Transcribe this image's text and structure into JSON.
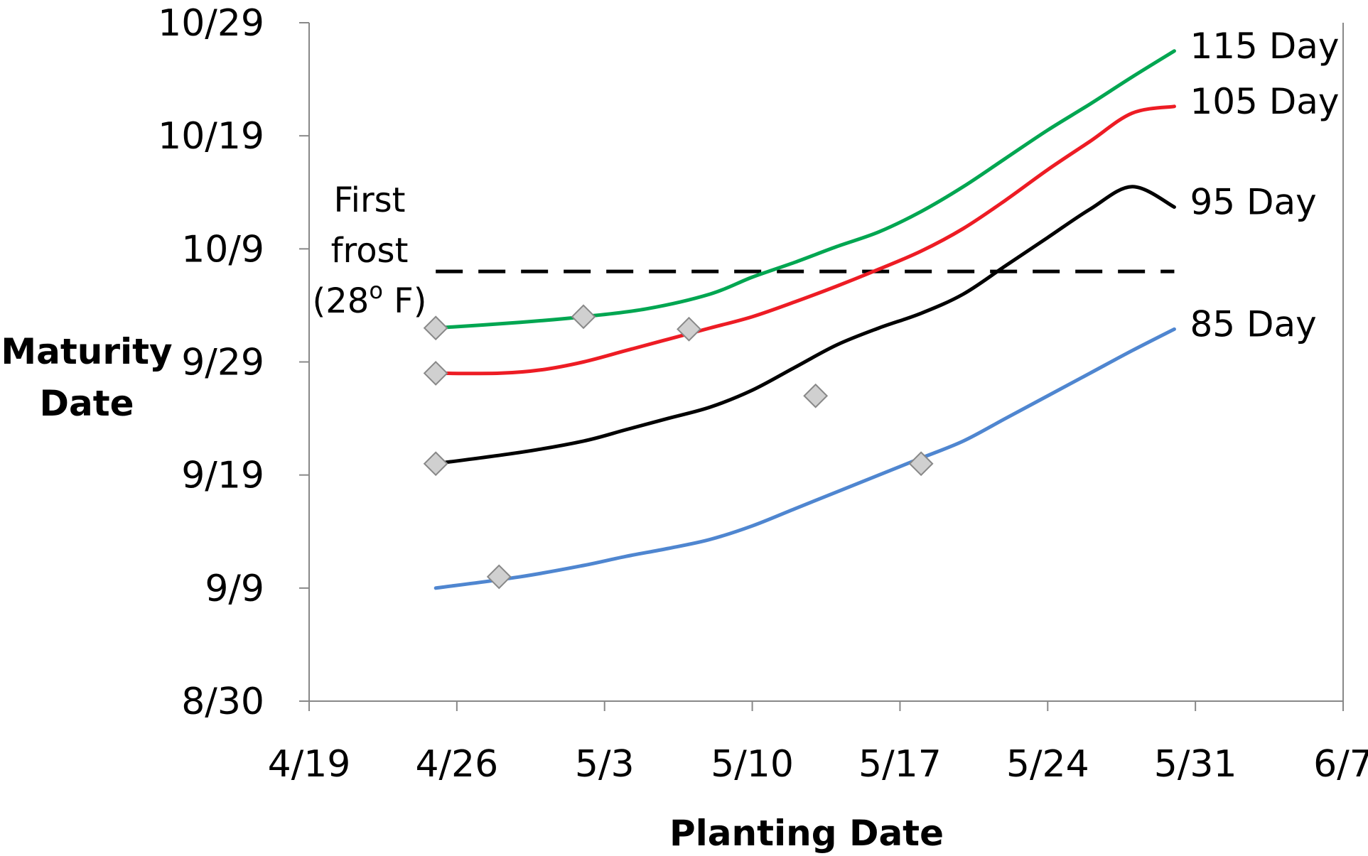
{
  "chart_data": {
    "type": "line",
    "xlabel": "Planting Date",
    "ylabel_lines": [
      "Maturity",
      "Date"
    ],
    "x_ticks": [
      "4/19",
      "4/26",
      "5/3",
      "5/10",
      "5/17",
      "5/24",
      "5/31",
      "6/7"
    ],
    "y_ticks": [
      "8/30",
      "9/9",
      "9/19",
      "9/29",
      "10/9",
      "10/19",
      "10/29"
    ],
    "xlim": [
      "4/19",
      "6/7"
    ],
    "ylim": [
      "8/30",
      "10/29"
    ],
    "grid": false,
    "series": [
      {
        "name": "115 Day",
        "color": "#00A651",
        "x": [
          "4/25",
          "4/29",
          "5/2",
          "5/5",
          "5/8",
          "5/10",
          "5/12",
          "5/14",
          "5/16",
          "5/18",
          "5/20",
          "5/22",
          "5/24",
          "5/26",
          "5/28",
          "5/30"
        ],
        "y": [
          "10/2",
          "10/2.5",
          "10/3",
          "10/3.7",
          "10/5",
          "10/6.5",
          "10/7.8",
          "10/9.2",
          "10/10.5",
          "10/12.3",
          "10/14.5",
          "10/17",
          "10/19.5",
          "10/21.8",
          "10/24.2",
          "10/26.5"
        ],
        "markers": [
          {
            "x": "4/25",
            "y": "10/2"
          },
          {
            "x": "5/2",
            "y": "10/3"
          }
        ]
      },
      {
        "name": "105 Day",
        "color": "#ED1C24",
        "x": [
          "4/25",
          "4/28",
          "4/30",
          "5/2",
          "5/4",
          "5/6",
          "5/8",
          "5/10",
          "5/12",
          "5/14",
          "5/16",
          "5/18",
          "5/20",
          "5/22",
          "5/24",
          "5/26",
          "5/28",
          "5/30"
        ],
        "y": [
          "9/28",
          "9/28",
          "9/28.3",
          "9/29",
          "9/30",
          "10/1",
          "10/2",
          "10/3",
          "10/4.3",
          "10/5.7",
          "10/7.2",
          "10/8.8",
          "10/10.8",
          "10/13.3",
          "10/16",
          "10/18.5",
          "10/21",
          "10/21.6"
        ],
        "markers": [
          {
            "x": "4/25",
            "y": "9/28"
          },
          {
            "x": "5/7",
            "y": "10/1.9"
          }
        ]
      },
      {
        "name": "95 Day",
        "color": "#000000",
        "x": [
          "4/25",
          "4/29",
          "5/2",
          "5/4",
          "5/6",
          "5/8",
          "5/10",
          "5/12",
          "5/14",
          "5/16",
          "5/18",
          "5/20",
          "5/22",
          "5/24",
          "5/26",
          "5/28",
          "5/30"
        ],
        "y": [
          "9/20",
          "9/21",
          "9/22",
          "9/23",
          "9/24",
          "9/25",
          "9/26.5",
          "9/28.5",
          "9/30.5",
          "10/2",
          "10/3.3",
          "10/5",
          "10/7.5",
          "10/10",
          "10/12.5",
          "10/14.5",
          "10/12.7"
        ],
        "markers": [
          {
            "x": "4/25",
            "y": "9/20"
          },
          {
            "x": "5/13",
            "y": "9/26"
          }
        ]
      },
      {
        "name": "85 Day",
        "color": "#4F86D0",
        "x": [
          "4/25",
          "4/29",
          "5/2",
          "5/4",
          "5/6",
          "5/8",
          "5/10",
          "5/12",
          "5/14",
          "5/16",
          "5/18",
          "5/20",
          "5/22",
          "5/24",
          "5/26",
          "5/28",
          "5/30"
        ],
        "y": [
          "9/9",
          "9/10",
          "9/11",
          "9/11.8",
          "9/12.5",
          "9/13.3",
          "9/14.5",
          "9/16",
          "9/17.5",
          "9/19",
          "9/20.5",
          "9/22",
          "9/24",
          "9/26",
          "9/28",
          "9/30",
          "10/1.9"
        ],
        "markers": [
          {
            "x": "4/28",
            "y": "9/10"
          },
          {
            "x": "5/18",
            "y": "9/20"
          }
        ]
      }
    ],
    "reference_line": {
      "label_lines": [
        "First",
        "frost",
        "(28",
        "o",
        " F)"
      ],
      "y": "10/7",
      "x_start": "4/25",
      "x_end": "5/30",
      "style": "dashed",
      "color": "#000000"
    },
    "marker_style": {
      "shape": "diamond",
      "fill": "#D0D0D0",
      "stroke": "#888888"
    }
  }
}
